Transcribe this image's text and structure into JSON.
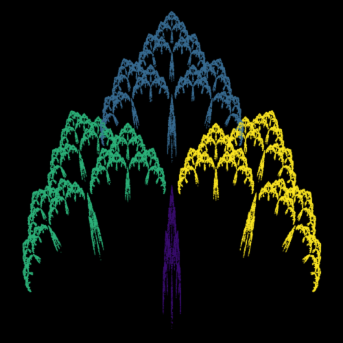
{
  "image": {
    "subject": "maple-leaf-fractal",
    "background_color": "#000000",
    "palette": [
      "#3b0f70",
      "#3b6e94",
      "#2fb47c",
      "#fde725"
    ],
    "regions": [
      {
        "name": "stem",
        "color": "#3b0f70"
      },
      {
        "name": "top-lobe",
        "color": "#3b6e94"
      },
      {
        "name": "left-lobe",
        "color": "#2fb47c"
      },
      {
        "name": "right-lobe",
        "color": "#fde725"
      }
    ]
  }
}
